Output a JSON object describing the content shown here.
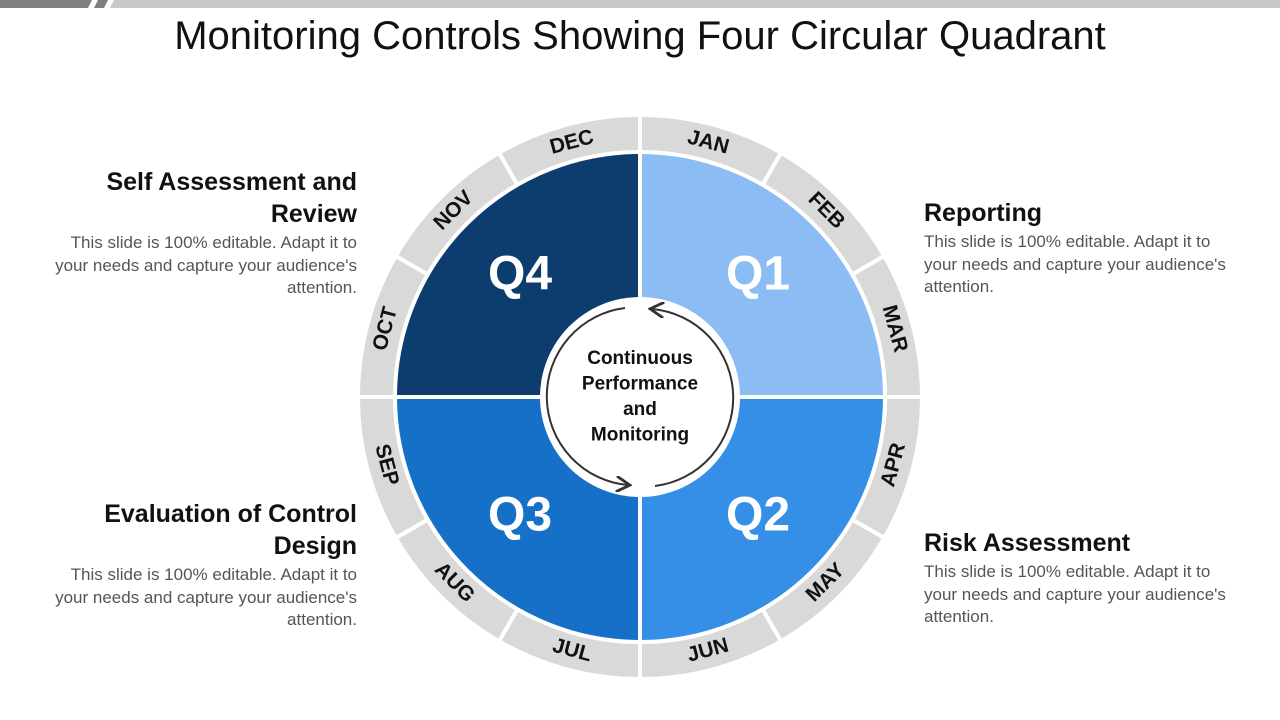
{
  "title": "Monitoring Controls Showing Four Circular Quadrant",
  "center": {
    "lines": [
      "Continuous",
      "Performance",
      "and",
      "Monitoring"
    ]
  },
  "quadrants": [
    {
      "label": "Q1",
      "color": "#8bbcf3"
    },
    {
      "label": "Q2",
      "color": "#358fe6"
    },
    {
      "label": "Q3",
      "color": "#1770c8"
    },
    {
      "label": "Q4",
      "color": "#0d3d6e"
    }
  ],
  "months": [
    "JAN",
    "FEB",
    "MAR",
    "APR",
    "MAY",
    "JUN",
    "JUL",
    "AUG",
    "SEP",
    "OCT",
    "NOV",
    "DEC"
  ],
  "blocks": [
    {
      "heading": "Self Assessment and Review",
      "body": "This slide is 100% editable. Adapt it to your needs and capture your audience's attention."
    },
    {
      "heading": "Reporting",
      "body": "This slide is 100% editable. Adapt it to your needs and capture your audience's attention."
    },
    {
      "heading": "Evaluation of Control Design",
      "body": "This slide is 100% editable. Adapt it to your needs and capture your audience's attention."
    },
    {
      "heading": "Risk Assessment",
      "body": "This slide is 100% editable. Adapt it to your needs and capture your audience's attention."
    }
  ]
}
